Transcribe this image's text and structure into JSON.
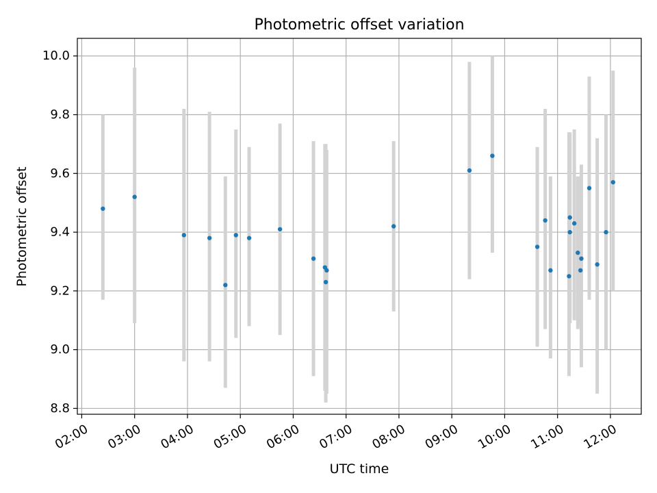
{
  "chart_data": {
    "type": "scatter",
    "title": "Photometric offset variation",
    "xlabel": "UTC time",
    "ylabel": "Photometric offset",
    "grid": true,
    "xlim": [
      "01:55",
      "12:35"
    ],
    "ylim": [
      8.78,
      10.06
    ],
    "xticks": [
      "02:00",
      "03:00",
      "04:00",
      "05:00",
      "06:00",
      "07:00",
      "08:00",
      "09:00",
      "10:00",
      "11:00",
      "12:00"
    ],
    "yticks": [
      8.8,
      9.0,
      9.2,
      9.4,
      9.6,
      9.8,
      10.0
    ],
    "ytick_labels": [
      "8.8",
      "9.0",
      "9.2",
      "9.4",
      "9.6",
      "9.8",
      "10.0"
    ],
    "marker_color": "#1f77b4",
    "errorbar_color": "#d3d3d3",
    "points": [
      {
        "x": "02:24",
        "y": 9.48,
        "err": [
          9.17,
          9.8
        ]
      },
      {
        "x": "03:00",
        "y": 9.52,
        "err": [
          9.09,
          9.96
        ]
      },
      {
        "x": "03:56",
        "y": 9.39,
        "err": [
          8.96,
          9.82
        ]
      },
      {
        "x": "04:25",
        "y": 9.38,
        "err": [
          8.96,
          9.81
        ]
      },
      {
        "x": "04:43",
        "y": 9.22,
        "err": [
          8.87,
          9.59
        ]
      },
      {
        "x": "04:55",
        "y": 9.39,
        "err": [
          9.04,
          9.75
        ]
      },
      {
        "x": "05:10",
        "y": 9.38,
        "err": [
          9.08,
          9.69
        ]
      },
      {
        "x": "05:45",
        "y": 9.41,
        "err": [
          9.05,
          9.77
        ]
      },
      {
        "x": "06:23",
        "y": 9.31,
        "err": [
          8.91,
          9.71
        ]
      },
      {
        "x": "06:36",
        "y": 9.28,
        "err": [
          8.86,
          9.7
        ]
      },
      {
        "x": "06:37",
        "y": 9.23,
        "err": [
          8.82,
          9.7
        ]
      },
      {
        "x": "06:38",
        "y": 9.27,
        "err": [
          8.85,
          9.68
        ]
      },
      {
        "x": "07:54",
        "y": 9.42,
        "err": [
          9.13,
          9.71
        ]
      },
      {
        "x": "09:20",
        "y": 9.61,
        "err": [
          9.24,
          9.98
        ]
      },
      {
        "x": "09:46",
        "y": 9.66,
        "err": [
          9.33,
          10.0
        ]
      },
      {
        "x": "10:37",
        "y": 9.35,
        "err": [
          9.01,
          9.69
        ]
      },
      {
        "x": "10:46",
        "y": 9.44,
        "err": [
          9.07,
          9.82
        ]
      },
      {
        "x": "10:52",
        "y": 9.27,
        "err": [
          8.97,
          9.59
        ]
      },
      {
        "x": "11:13",
        "y": 9.25,
        "err": [
          8.91,
          9.74
        ]
      },
      {
        "x": "11:14",
        "y": 9.45,
        "err": [
          9.11,
          9.74
        ]
      },
      {
        "x": "11:14",
        "y": 9.4,
        "err": [
          9.09,
          9.71
        ]
      },
      {
        "x": "11:19",
        "y": 9.43,
        "err": [
          9.1,
          9.75
        ]
      },
      {
        "x": "11:23",
        "y": 9.33,
        "err": [
          9.07,
          9.59
        ]
      },
      {
        "x": "11:26",
        "y": 9.27,
        "err": [
          9.08,
          9.59
        ]
      },
      {
        "x": "11:27",
        "y": 9.31,
        "err": [
          8.94,
          9.63
        ]
      },
      {
        "x": "11:36",
        "y": 9.55,
        "err": [
          9.17,
          9.93
        ]
      },
      {
        "x": "11:45",
        "y": 9.29,
        "err": [
          8.85,
          9.72
        ]
      },
      {
        "x": "11:55",
        "y": 9.4,
        "err": [
          9.0,
          9.8
        ]
      },
      {
        "x": "12:03",
        "y": 9.57,
        "err": [
          9.2,
          9.95
        ]
      }
    ]
  }
}
